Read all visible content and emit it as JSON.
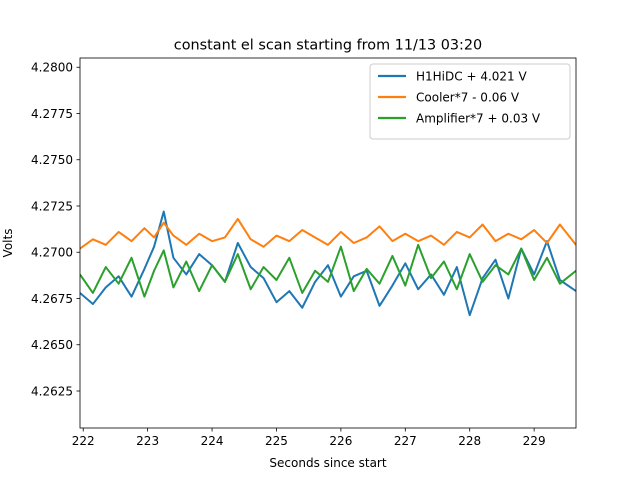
{
  "chart_data": {
    "type": "line",
    "title": "constant el scan starting from 11/13 03:20",
    "xlabel": "Seconds since start",
    "ylabel": "Volts",
    "xlim": [
      221.95,
      229.65
    ],
    "ylim": [
      4.2605,
      4.2805
    ],
    "xticks": [
      222,
      223,
      224,
      225,
      226,
      227,
      228,
      229
    ],
    "yticks": [
      4.2625,
      4.265,
      4.2675,
      4.27,
      4.2725,
      4.275,
      4.2775,
      4.28
    ],
    "xtick_labels": [
      "222",
      "223",
      "224",
      "225",
      "226",
      "227",
      "228",
      "229"
    ],
    "ytick_labels": [
      "4.2625",
      "4.2650",
      "4.2675",
      "4.2700",
      "4.2725",
      "4.2750",
      "4.2775",
      "4.2800"
    ],
    "grid": false,
    "legend": "top-right",
    "series": [
      {
        "name": "H1HiDC + 4.021 V",
        "color": "#1f77b4",
        "x": [
          221.95,
          222.15,
          222.35,
          222.55,
          222.75,
          222.95,
          223.1,
          223.25,
          223.4,
          223.6,
          223.8,
          224.0,
          224.2,
          224.4,
          224.6,
          224.8,
          225.0,
          225.2,
          225.4,
          225.6,
          225.8,
          226.0,
          226.2,
          226.4,
          226.6,
          226.8,
          227.0,
          227.2,
          227.4,
          227.6,
          227.8,
          228.0,
          228.2,
          228.4,
          228.6,
          228.8,
          229.0,
          229.2,
          229.4,
          229.65
        ],
        "y": [
          4.2678,
          4.2672,
          4.2681,
          4.2687,
          4.2676,
          4.2691,
          4.2703,
          4.2722,
          4.2697,
          4.2688,
          4.2699,
          4.2693,
          4.2684,
          4.2705,
          4.2692,
          4.2686,
          4.2673,
          4.2679,
          4.267,
          4.2684,
          4.2693,
          4.2676,
          4.2687,
          4.269,
          4.2671,
          4.2682,
          4.2694,
          4.268,
          4.2688,
          4.2677,
          4.2692,
          4.2666,
          4.2686,
          4.2696,
          4.2675,
          4.2702,
          4.2688,
          4.2706,
          4.2685,
          4.2679
        ]
      },
      {
        "name": "Cooler*7 - 0.06 V",
        "color": "#ff7f0e",
        "x": [
          221.95,
          222.15,
          222.35,
          222.55,
          222.75,
          222.95,
          223.1,
          223.25,
          223.4,
          223.6,
          223.8,
          224.0,
          224.2,
          224.4,
          224.6,
          224.8,
          225.0,
          225.2,
          225.4,
          225.6,
          225.8,
          226.0,
          226.2,
          226.4,
          226.6,
          226.8,
          227.0,
          227.2,
          227.4,
          227.6,
          227.8,
          228.0,
          228.2,
          228.4,
          228.6,
          228.8,
          229.0,
          229.2,
          229.4,
          229.65
        ],
        "y": [
          4.2702,
          4.2707,
          4.2704,
          4.2711,
          4.2706,
          4.2713,
          4.2708,
          4.2716,
          4.2709,
          4.2704,
          4.271,
          4.2706,
          4.2708,
          4.2718,
          4.2707,
          4.2703,
          4.2709,
          4.2706,
          4.2712,
          4.2708,
          4.2704,
          4.2711,
          4.2705,
          4.2708,
          4.2714,
          4.2706,
          4.271,
          4.2706,
          4.2709,
          4.2704,
          4.2711,
          4.2708,
          4.2715,
          4.2706,
          4.271,
          4.2707,
          4.2712,
          4.2705,
          4.2715,
          4.2704
        ]
      },
      {
        "name": "Amplifier*7 + 0.03 V",
        "color": "#2ca02c",
        "x": [
          221.95,
          222.15,
          222.35,
          222.55,
          222.75,
          222.95,
          223.1,
          223.25,
          223.4,
          223.6,
          223.8,
          224.0,
          224.2,
          224.4,
          224.6,
          224.8,
          225.0,
          225.2,
          225.4,
          225.6,
          225.8,
          226.0,
          226.2,
          226.4,
          226.6,
          226.8,
          227.0,
          227.2,
          227.4,
          227.6,
          227.8,
          228.0,
          228.2,
          228.4,
          228.6,
          228.8,
          229.0,
          229.2,
          229.4,
          229.65
        ],
        "y": [
          4.2688,
          4.2678,
          4.2692,
          4.2683,
          4.2697,
          4.2676,
          4.269,
          4.2701,
          4.2681,
          4.2695,
          4.2679,
          4.2693,
          4.2684,
          4.2699,
          4.268,
          4.2692,
          4.2685,
          4.2697,
          4.2678,
          4.269,
          4.2684,
          4.2703,
          4.2679,
          4.2691,
          4.2683,
          4.2698,
          4.2682,
          4.2704,
          4.2686,
          4.2695,
          4.268,
          4.2699,
          4.2684,
          4.2693,
          4.2688,
          4.2702,
          4.2685,
          4.2697,
          4.2683,
          4.269
        ]
      }
    ]
  }
}
